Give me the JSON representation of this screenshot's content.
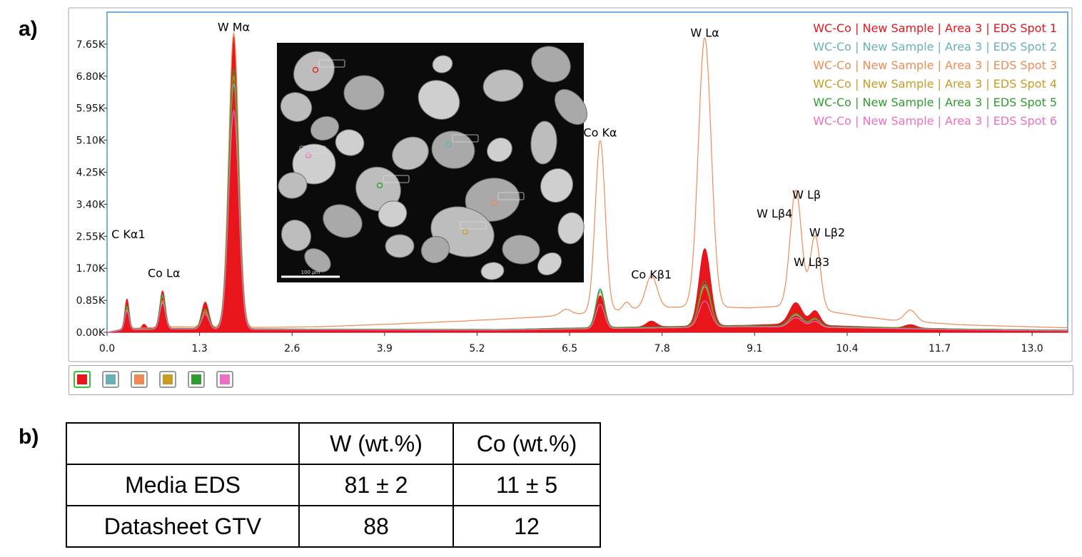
{
  "panel_labels": {
    "a": "a)",
    "b": "b)"
  },
  "chart_data": {
    "type": "area",
    "title": "",
    "xlabel": "",
    "ylabel": "",
    "xlim": [
      0.0,
      13.5
    ],
    "ylim": [
      0,
      8500
    ],
    "x_ticks": [
      0.0,
      1.3,
      2.6,
      3.9,
      5.2,
      6.5,
      7.8,
      9.1,
      10.4,
      11.7,
      13.0
    ],
    "x_tick_labels": [
      "0.0",
      "1.3",
      "2.6",
      "3.9",
      "5.2",
      "6.5",
      "7.8",
      "9.1",
      "10.4",
      "11.7",
      "13.0"
    ],
    "y_ticks": [
      0,
      850,
      1700,
      2550,
      3400,
      4250,
      5100,
      5950,
      6800,
      7650
    ],
    "y_tick_labels": [
      "0.00K",
      "0.85K",
      "1.70K",
      "2.55K",
      "3.40K",
      "4.25K",
      "5.10K",
      "5.95K",
      "6.80K",
      "7.65K"
    ],
    "legend_position": "top-right",
    "series": [
      {
        "name": "WC-Co | New Sample | Area 3 | EDS Spot 1",
        "color": "#e8151b",
        "filled": true,
        "baseline": [
          [
            0.0,
            0
          ],
          [
            0.25,
            90
          ],
          [
            1.0,
            110
          ],
          [
            2.5,
            90
          ],
          [
            4.0,
            80
          ],
          [
            5.5,
            70
          ],
          [
            6.3,
            110
          ],
          [
            7.0,
            130
          ],
          [
            8.0,
            160
          ],
          [
            9.0,
            190
          ],
          [
            9.5,
            220
          ],
          [
            10.5,
            160
          ],
          [
            11.2,
            120
          ],
          [
            12.0,
            90
          ],
          [
            13.5,
            60
          ]
        ],
        "peaks": [
          [
            0.28,
            800,
            0.03
          ],
          [
            0.52,
            120,
            0.03
          ],
          [
            0.78,
            1000,
            0.04
          ],
          [
            1.38,
            700,
            0.05
          ],
          [
            1.78,
            7750,
            0.07
          ],
          [
            6.93,
            850,
            0.06
          ],
          [
            7.65,
            150,
            0.07
          ],
          [
            8.4,
            2050,
            0.08
          ],
          [
            9.68,
            580,
            0.09
          ],
          [
            9.95,
            380,
            0.07
          ],
          [
            11.29,
            90,
            0.08
          ]
        ]
      },
      {
        "name": "WC-Co | New Sample | Area 3 | EDS Spot 2",
        "color": "#67b0b8",
        "filled": false,
        "baseline": [
          [
            0.0,
            0
          ],
          [
            0.25,
            80
          ],
          [
            1.0,
            100
          ],
          [
            2.5,
            80
          ],
          [
            5.5,
            70
          ],
          [
            7.0,
            120
          ],
          [
            9.0,
            170
          ],
          [
            10.5,
            140
          ],
          [
            12.0,
            80
          ],
          [
            13.5,
            50
          ]
        ],
        "peaks": [
          [
            0.28,
            600,
            0.03
          ],
          [
            0.78,
            900,
            0.04
          ],
          [
            1.38,
            500,
            0.05
          ],
          [
            1.78,
            6500,
            0.07
          ],
          [
            6.93,
            1050,
            0.06
          ],
          [
            8.4,
            1100,
            0.08
          ],
          [
            9.68,
            300,
            0.09
          ],
          [
            9.95,
            200,
            0.07
          ]
        ]
      },
      {
        "name": "WC-Co | New Sample | Area 3 | EDS Spot 3",
        "color": "#f08a55",
        "filled": false,
        "baseline": [
          [
            0.0,
            0
          ],
          [
            0.25,
            100
          ],
          [
            1.0,
            150
          ],
          [
            2.0,
            130
          ],
          [
            3.0,
            150
          ],
          [
            4.0,
            220
          ],
          [
            5.0,
            300
          ],
          [
            6.0,
            400
          ],
          [
            6.5,
            470
          ],
          [
            7.0,
            550
          ],
          [
            7.6,
            650
          ],
          [
            8.3,
            680
          ],
          [
            9.0,
            650
          ],
          [
            9.6,
            700
          ],
          [
            10.0,
            600
          ],
          [
            10.6,
            420
          ],
          [
            11.0,
            330
          ],
          [
            12.0,
            200
          ],
          [
            13.5,
            120
          ]
        ],
        "peaks": [
          [
            0.28,
            500,
            0.03
          ],
          [
            0.78,
            700,
            0.04
          ],
          [
            1.38,
            400,
            0.05
          ],
          [
            1.78,
            7800,
            0.07
          ],
          [
            6.45,
            150,
            0.07
          ],
          [
            6.93,
            4550,
            0.07
          ],
          [
            7.3,
            200,
            0.05
          ],
          [
            7.65,
            850,
            0.08
          ],
          [
            8.4,
            7150,
            0.09
          ],
          [
            9.68,
            3100,
            0.08
          ],
          [
            9.95,
            1950,
            0.07
          ],
          [
            11.29,
            300,
            0.08
          ]
        ]
      },
      {
        "name": "WC-Co | New Sample | Area 3 | EDS Spot 4",
        "color": "#c99a24",
        "filled": false,
        "baseline": [
          [
            0.0,
            0
          ],
          [
            0.25,
            80
          ],
          [
            1.0,
            100
          ],
          [
            2.5,
            80
          ],
          [
            5.5,
            70
          ],
          [
            7.0,
            120
          ],
          [
            9.0,
            170
          ],
          [
            10.5,
            140
          ],
          [
            12.0,
            80
          ],
          [
            13.5,
            50
          ]
        ],
        "peaks": [
          [
            0.28,
            600,
            0.03
          ],
          [
            0.78,
            850,
            0.04
          ],
          [
            1.38,
            500,
            0.05
          ],
          [
            1.78,
            6700,
            0.07
          ],
          [
            6.93,
            950,
            0.06
          ],
          [
            8.4,
            1050,
            0.08
          ],
          [
            9.68,
            320,
            0.09
          ],
          [
            9.95,
            210,
            0.07
          ]
        ]
      },
      {
        "name": "WC-Co | New Sample | Area 3 | EDS Spot 5",
        "color": "#2f9c2f",
        "filled": false,
        "baseline": [
          [
            0.0,
            0
          ],
          [
            0.25,
            85
          ],
          [
            1.0,
            105
          ],
          [
            2.5,
            85
          ],
          [
            5.5,
            75
          ],
          [
            7.0,
            125
          ],
          [
            9.0,
            175
          ],
          [
            10.5,
            145
          ],
          [
            12.0,
            85
          ],
          [
            13.5,
            55
          ]
        ],
        "peaks": [
          [
            0.28,
            620,
            0.03
          ],
          [
            0.78,
            880,
            0.04
          ],
          [
            1.38,
            520,
            0.05
          ],
          [
            1.78,
            6900,
            0.07
          ],
          [
            6.93,
            1000,
            0.06
          ],
          [
            8.4,
            1200,
            0.08
          ],
          [
            9.68,
            340,
            0.09
          ],
          [
            9.95,
            220,
            0.07
          ]
        ]
      },
      {
        "name": "WC-Co | New Sample | Area 3 | EDS Spot 6",
        "color": "#ee6fc1",
        "filled": false,
        "baseline": [
          [
            0.0,
            0
          ],
          [
            0.25,
            70
          ],
          [
            1.0,
            90
          ],
          [
            2.5,
            70
          ],
          [
            5.5,
            60
          ],
          [
            7.0,
            100
          ],
          [
            9.0,
            150
          ],
          [
            10.5,
            120
          ],
          [
            12.0,
            70
          ],
          [
            13.5,
            40
          ]
        ],
        "peaks": [
          [
            0.28,
            500,
            0.03
          ],
          [
            0.78,
            700,
            0.04
          ],
          [
            1.38,
            400,
            0.05
          ],
          [
            1.78,
            5800,
            0.07
          ],
          [
            6.93,
            650,
            0.06
          ],
          [
            8.4,
            700,
            0.08
          ],
          [
            9.68,
            250,
            0.09
          ],
          [
            9.95,
            160,
            0.07
          ]
        ]
      }
    ],
    "annotations": [
      {
        "text": "W  Mα",
        "x": 1.78,
        "y": 8000
      },
      {
        "text": "C  Kα1",
        "x": 0.3,
        "y": 2500
      },
      {
        "text": "Co Lα",
        "x": 0.8,
        "y": 1470
      },
      {
        "text": "Co Kα",
        "x": 6.93,
        "y": 5200
      },
      {
        "text": "Co Kβ1",
        "x": 7.65,
        "y": 1430
      },
      {
        "text": "W  Lα",
        "x": 8.4,
        "y": 7850
      },
      {
        "text": "W  Lβ",
        "x": 9.83,
        "y": 3550
      },
      {
        "text": "W  Lβ4",
        "x": 9.38,
        "y": 3050
      },
      {
        "text": "W  Lβ2",
        "x": 10.12,
        "y": 2550
      },
      {
        "text": "W  Lβ3",
        "x": 9.9,
        "y": 1760
      }
    ]
  },
  "inset": {
    "scale_text": "100 µm"
  },
  "table": {
    "headers": [
      "",
      "W (wt.%)",
      "Co (wt.%)"
    ],
    "rows": [
      [
        "Media EDS",
        "81 ± 2",
        "11 ± 5"
      ],
      [
        "Datasheet GTV",
        "88",
        "12"
      ]
    ]
  }
}
